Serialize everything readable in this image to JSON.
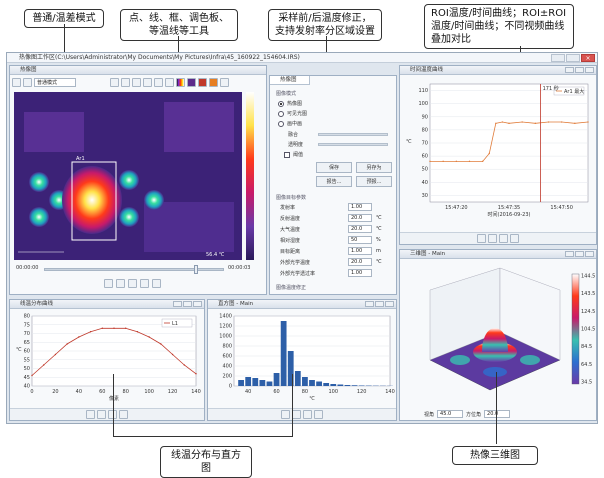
{
  "callouts": {
    "mode": "普通/温差模式",
    "tools": "点、线、框、调色板、等温线等工具",
    "sampling": "采样前/后温度修正，支持发射率分区域设置",
    "roi": "ROI温度/时间曲线；ROI±ROI温度/时间曲线；不同视频曲线叠加对比",
    "line_hist": "线温分布与直方图",
    "threed": "热像三维图"
  },
  "app": {
    "title": "热像图工作区(C:\\Users\\Administrator\\My Documents\\My Pictures\\Infra\\45_160922_154604.IRS)",
    "tab": "热像图",
    "mode_select": "普通模式"
  },
  "thermal": {
    "roi_label": "Ar1",
    "scale_min": "56.4 ℃",
    "time_start": "00:00:00",
    "time_end": "00:00:03"
  },
  "settings": {
    "tab": "热像图",
    "group_display": "图像模式",
    "radio_thermal": "热像图",
    "radio_visible": "可见光图",
    "radio_fusion": "画中画",
    "opt_blend": "融合",
    "opt_transparency": "透明度",
    "opt_threshold": "阈值",
    "btn_save": "保存",
    "btn_save_as": "另存为",
    "btn_report": "报告...",
    "btn_export": "预报...",
    "group_params": "图像目标参数",
    "params": [
      {
        "name": "发射率",
        "value": "1.00",
        "unit": ""
      },
      {
        "name": "反射温度",
        "value": "20.0",
        "unit": "℃"
      },
      {
        "name": "大气温度",
        "value": "20.0",
        "unit": "℃"
      },
      {
        "name": "相对湿度",
        "value": "50",
        "unit": "%"
      },
      {
        "name": "目标距离",
        "value": "1.00",
        "unit": "m"
      },
      {
        "name": "外部光学温度",
        "value": "20.0",
        "unit": "℃"
      },
      {
        "name": "外部光学透过率",
        "value": "1.00",
        "unit": ""
      }
    ],
    "group_adjust": "图像温度修正"
  },
  "panels": {
    "roi_time": "时间温度曲线",
    "line_dist": "线温分布曲线",
    "histogram": "直方图 - Main",
    "threed": "三维图 - Main"
  },
  "threed_controls": {
    "angle_label": "视角",
    "angle_value": "45.0",
    "dir_label": "方位角",
    "dir_value": "20.0"
  },
  "chart_data": [
    {
      "type": "line",
      "title": "",
      "ylabel": "℃",
      "xlabel": "时间(2016-09-23)",
      "legend": [
        "Ar1 最大"
      ],
      "cursor_label": "171 秒",
      "ylim": [
        25,
        115
      ],
      "yticks": [
        30,
        40,
        50,
        60,
        70,
        80,
        90,
        100,
        110
      ],
      "xticks": [
        "15:47:20",
        "15:47:35",
        "15:47:50"
      ],
      "x": [
        0,
        10,
        20,
        30,
        40,
        45,
        50,
        55,
        60,
        70,
        80,
        90,
        100,
        110,
        120
      ],
      "values": [
        56,
        56,
        56,
        56,
        56,
        62,
        85,
        86,
        85,
        86,
        85,
        86,
        86,
        85,
        86
      ]
    },
    {
      "type": "line",
      "title": "",
      "ylabel": "℃",
      "xlabel": "像素",
      "legend": [
        "L1"
      ],
      "ylim": [
        40,
        80
      ],
      "yticks": [
        40,
        45,
        50,
        55,
        60,
        65,
        70,
        75,
        80
      ],
      "xticks": [
        0,
        20,
        40,
        60,
        80,
        100,
        120,
        140
      ],
      "x": [
        0,
        10,
        20,
        30,
        40,
        50,
        60,
        70,
        80,
        90,
        100,
        110,
        120,
        130,
        140
      ],
      "values": [
        46,
        52,
        58,
        64,
        68,
        71,
        73,
        73,
        73,
        71,
        68,
        64,
        58,
        52,
        47
      ]
    },
    {
      "type": "bar",
      "title": "",
      "ylabel": "",
      "xlabel": "℃",
      "ylim": [
        0,
        1400
      ],
      "yticks": [
        0,
        200,
        400,
        600,
        800,
        1000,
        1200,
        1400
      ],
      "xticks": [
        40,
        60,
        80,
        100,
        120,
        140
      ],
      "categories": [
        30,
        35,
        40,
        45,
        50,
        55,
        60,
        65,
        70,
        75,
        80,
        85,
        90,
        95,
        100,
        105,
        110,
        115,
        120,
        125,
        130,
        135,
        140
      ],
      "values": [
        0,
        120,
        180,
        160,
        120,
        90,
        260,
        1300,
        700,
        300,
        180,
        120,
        90,
        60,
        40,
        30,
        20,
        15,
        10,
        8,
        6,
        5,
        4
      ]
    }
  ],
  "surface3d": {
    "zlim": [
      50,
      160
    ],
    "colorbar_ticks": [
      "144.5",
      "143.5",
      "124.5",
      "104.5",
      "84.5",
      "64.5",
      "34.5"
    ]
  }
}
